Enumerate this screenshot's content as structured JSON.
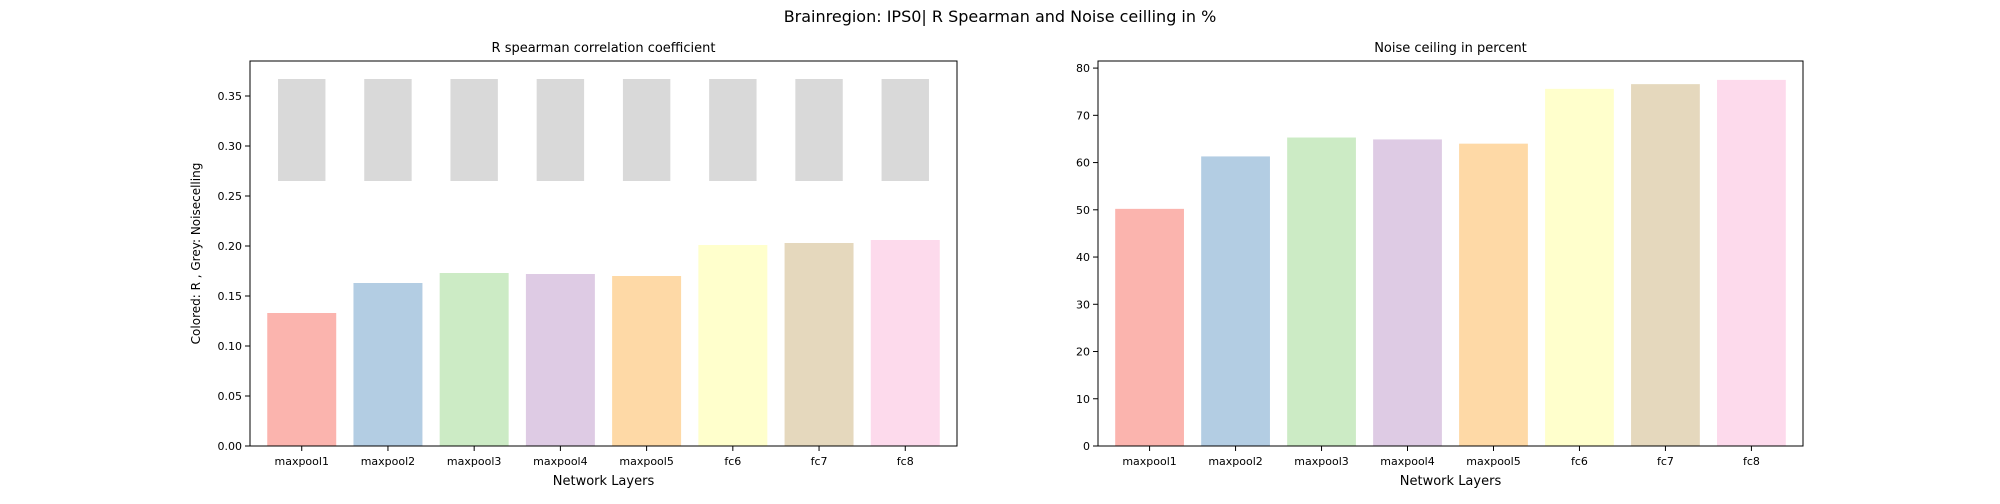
{
  "figure": {
    "title": "Brainregion: IPS0| R Spearman and Noise ceilling in %"
  },
  "chart_data": [
    {
      "type": "bar",
      "title": "R spearman correlation coefficient",
      "xlabel": "Network Layers",
      "ylabel": "Colored: R , Grey: Noisecelling",
      "categories": [
        "maxpool1",
        "maxpool2",
        "maxpool3",
        "maxpool4",
        "maxpool5",
        "fc6",
        "fc7",
        "fc8"
      ],
      "ylim": [
        0,
        0.385
      ],
      "yticks": [
        0.0,
        0.05,
        0.1,
        0.15,
        0.2,
        0.25,
        0.3,
        0.35
      ],
      "ytick_labels": [
        "0.00",
        "0.05",
        "0.10",
        "0.15",
        "0.20",
        "0.25",
        "0.30",
        "0.35"
      ],
      "series": [
        {
          "values": [
            0.133,
            0.163,
            0.173,
            0.172,
            0.17,
            0.201,
            0.203,
            0.206
          ]
        }
      ],
      "noise_ceiling": {
        "lower": [
          0.265,
          0.265,
          0.265,
          0.265,
          0.265,
          0.265,
          0.265,
          0.265
        ],
        "upper": [
          0.367,
          0.367,
          0.367,
          0.367,
          0.367,
          0.367,
          0.367,
          0.367
        ],
        "color": "#d9d9d9"
      },
      "colors": [
        "#fbb4ae",
        "#b3cde3",
        "#ccebc5",
        "#decbe4",
        "#fed9a6",
        "#ffffcc",
        "#e5d8bd",
        "#fddaec"
      ],
      "grid": false
    },
    {
      "type": "bar",
      "title": "Noise ceiling in percent",
      "xlabel": "Network Layers",
      "ylabel": "",
      "categories": [
        "maxpool1",
        "maxpool2",
        "maxpool3",
        "maxpool4",
        "maxpool5",
        "fc6",
        "fc7",
        "fc8"
      ],
      "ylim": [
        0,
        81.5
      ],
      "yticks": [
        0,
        10,
        20,
        30,
        40,
        50,
        60,
        70,
        80
      ],
      "ytick_labels": [
        "0",
        "10",
        "20",
        "30",
        "40",
        "50",
        "60",
        "70",
        "80"
      ],
      "series": [
        {
          "values": [
            50.2,
            61.3,
            65.3,
            64.9,
            64.0,
            75.6,
            76.6,
            77.5
          ]
        }
      ],
      "colors": [
        "#fbb4ae",
        "#b3cde3",
        "#ccebc5",
        "#decbe4",
        "#fed9a6",
        "#ffffcc",
        "#e5d8bd",
        "#fddaec"
      ],
      "grid": false
    }
  ]
}
